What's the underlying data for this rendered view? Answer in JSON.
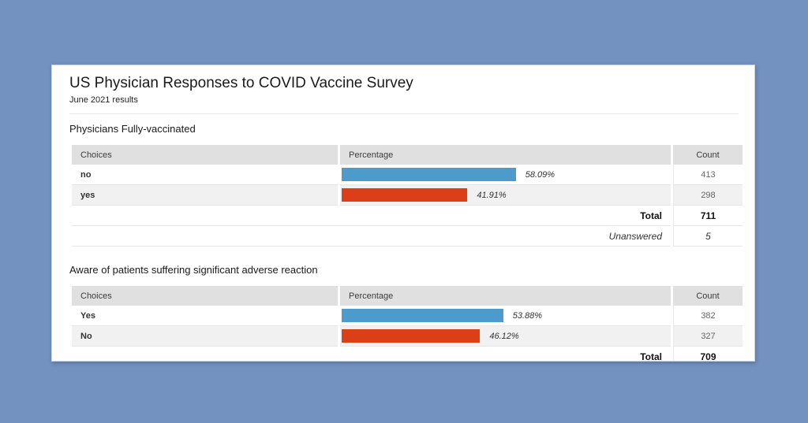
{
  "page": {
    "title": "US Physician Responses to COVID Vaccine Survey",
    "subtitle": "June 2021 results"
  },
  "colors": {
    "page_background": "#7492c0",
    "card_background": "#ffffff",
    "table_header_background": "#e0e0e0",
    "row_stripe_background": "#f1f1f1",
    "bar_blue": "#4b9bcd",
    "bar_red": "#dc3e17",
    "row_border": "#e6e6e6"
  },
  "tables": [
    {
      "heading": "Physicians Fully-vaccinated",
      "columns": {
        "choices": "Choices",
        "percentage": "Percentage",
        "count": "Count"
      },
      "rows": [
        {
          "choice": "no",
          "percent": 58.09,
          "percent_label": "58.09%",
          "count": "413",
          "bar_color": "#4b9bcd"
        },
        {
          "choice": "yes",
          "percent": 41.91,
          "percent_label": "41.91%",
          "count": "298",
          "bar_color": "#dc3e17"
        }
      ],
      "total_label": "Total",
      "total_value": "711",
      "unanswered_label": "Unanswered",
      "unanswered_value": "5"
    },
    {
      "heading": "Aware of patients suffering significant adverse reaction",
      "columns": {
        "choices": "Choices",
        "percentage": "Percentage",
        "count": "Count"
      },
      "rows": [
        {
          "choice": "Yes",
          "percent": 53.88,
          "percent_label": "53.88%",
          "count": "382",
          "bar_color": "#4b9bcd"
        },
        {
          "choice": "No",
          "percent": 46.12,
          "percent_label": "46.12%",
          "count": "327",
          "bar_color": "#dc3e17"
        }
      ],
      "total_label": "Total",
      "total_value": "709"
    }
  ],
  "chart_data": [
    {
      "type": "bar",
      "title": "Physicians Fully-vaccinated",
      "categories": [
        "no",
        "yes"
      ],
      "series": [
        {
          "name": "Percentage",
          "values": [
            58.09,
            41.91
          ]
        },
        {
          "name": "Count",
          "values": [
            413,
            298
          ]
        }
      ],
      "total": 711,
      "unanswered": 5,
      "xlabel": "Percentage",
      "xlim": [
        0,
        100
      ],
      "bar_colors": [
        "#4b9bcd",
        "#dc3e17"
      ],
      "grid": false,
      "legend": "none"
    },
    {
      "type": "bar",
      "title": "Aware of patients suffering significant adverse reaction",
      "categories": [
        "Yes",
        "No"
      ],
      "series": [
        {
          "name": "Percentage",
          "values": [
            53.88,
            46.12
          ]
        },
        {
          "name": "Count",
          "values": [
            382,
            327
          ]
        }
      ],
      "total": 709,
      "xlabel": "Percentage",
      "xlim": [
        0,
        100
      ],
      "bar_colors": [
        "#4b9bcd",
        "#dc3e17"
      ],
      "grid": false,
      "legend": "none"
    }
  ]
}
